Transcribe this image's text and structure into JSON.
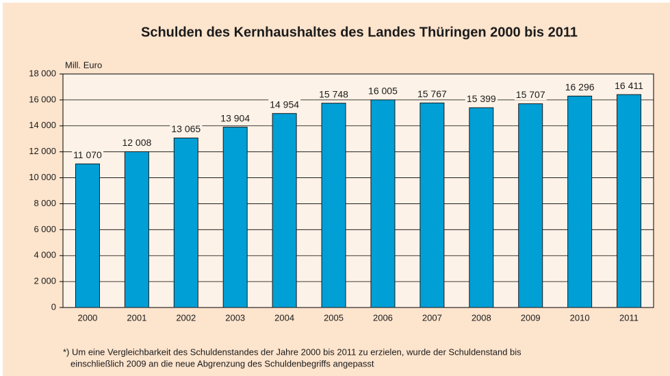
{
  "chart_data": {
    "type": "bar",
    "title": "Schulden des Kernhaushaltes des Landes Thüringen 2000 bis 2011",
    "y_label": "Mill. Euro",
    "categories": [
      "2000",
      "2001",
      "2002",
      "2003",
      "2004",
      "2005",
      "2006",
      "2007",
      "2008",
      "2009",
      "2010",
      "2011"
    ],
    "values": [
      11070,
      12008,
      13065,
      13904,
      14954,
      15748,
      16005,
      15767,
      15399,
      15707,
      16296,
      16411
    ],
    "value_labels": [
      "11 070",
      "12 008",
      "13 065",
      "13 904",
      "14 954",
      "15 748",
      "16 005",
      "15 767",
      "15 399",
      "15 707",
      "16 296",
      "16 411"
    ],
    "color": "#009fd6",
    "ylim": [
      0,
      18000
    ],
    "yticks": [
      0,
      {
        "value": 2000,
        "label": "2 000"
      },
      {
        "value": 4000,
        "label": "4 000"
      },
      {
        "value": 6000,
        "label": "6 000"
      },
      {
        "value": 8000,
        "label": "8 000"
      },
      {
        "value": 10000,
        "label": "10 000"
      },
      {
        "value": 12000,
        "label": "12 000"
      },
      {
        "value": 14000,
        "label": "14 000"
      },
      {
        "value": 16000,
        "label": "16 000"
      },
      {
        "value": 18000,
        "label": "18 000"
      }
    ],
    "grid": true,
    "footnote": [
      "*) Um eine Vergleichbarkeit des Schuldenstandes der Jahre 2000 bis 2011 zu erzielen, wurde der Schuldenstand bis",
      "einschließlich 2009 an die neue Abgrenzung des Schuldenbegriffs angepasst"
    ]
  }
}
